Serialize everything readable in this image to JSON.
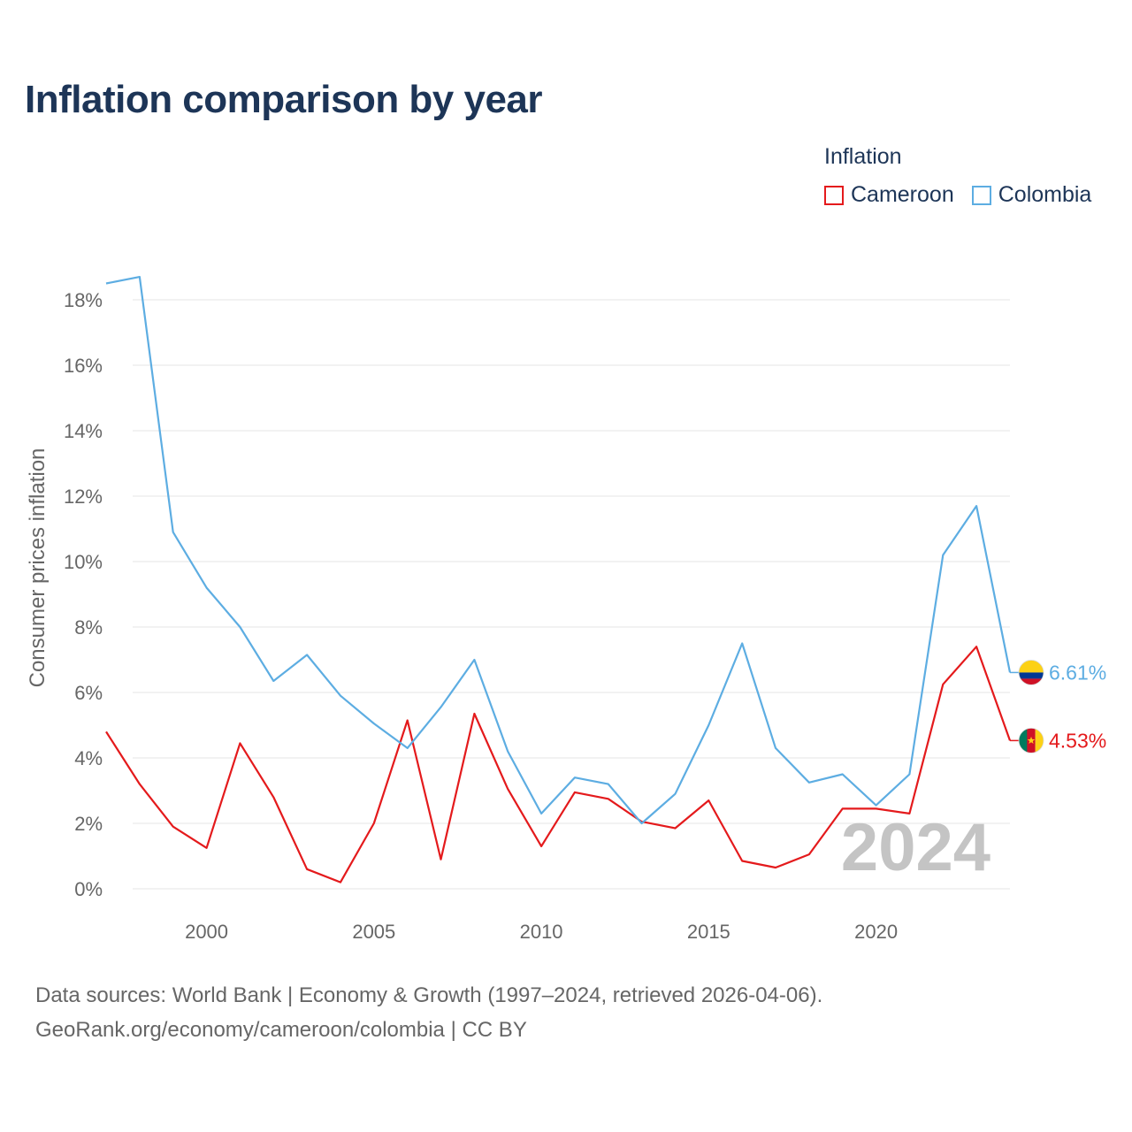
{
  "chart_data": {
    "type": "line",
    "title": "Inflation comparison by year",
    "legend_title": "Inflation",
    "ylabel": "Consumer prices inflation",
    "xlabel": "",
    "ylim": [
      -0.5,
      19
    ],
    "xlim": [
      1997,
      2024
    ],
    "y_ticks": [
      0,
      2,
      4,
      6,
      8,
      10,
      12,
      14,
      16,
      18
    ],
    "y_tick_labels": [
      "0%",
      "2%",
      "4%",
      "6%",
      "8%",
      "10%",
      "12%",
      "14%",
      "16%",
      "18%"
    ],
    "x_ticks": [
      2000,
      2005,
      2010,
      2015,
      2020
    ],
    "x_tick_labels": [
      "2000",
      "2005",
      "2010",
      "2015",
      "2020"
    ],
    "year_watermark": "2024",
    "x": [
      1997,
      1998,
      1999,
      2000,
      2001,
      2002,
      2003,
      2004,
      2005,
      2006,
      2007,
      2008,
      2009,
      2010,
      2011,
      2012,
      2013,
      2014,
      2015,
      2016,
      2017,
      2018,
      2019,
      2020,
      2021,
      2022,
      2023,
      2024
    ],
    "series": [
      {
        "name": "Cameroon",
        "color": "#e41a1c",
        "end_label": "4.53%",
        "values": [
          4.8,
          3.2,
          1.9,
          1.25,
          4.45,
          2.8,
          0.6,
          0.2,
          2.0,
          5.15,
          0.9,
          5.35,
          3.05,
          1.3,
          2.95,
          2.75,
          2.05,
          1.85,
          2.7,
          0.85,
          0.65,
          1.05,
          2.45,
          2.45,
          2.3,
          6.25,
          7.4,
          4.53
        ]
      },
      {
        "name": "Colombia",
        "color": "#5dade2",
        "end_label": "6.61%",
        "values": [
          18.5,
          18.7,
          10.9,
          9.2,
          8.0,
          6.35,
          7.15,
          5.9,
          5.05,
          4.3,
          5.55,
          7.0,
          4.2,
          2.3,
          3.4,
          3.2,
          2.0,
          2.9,
          5.0,
          7.5,
          4.3,
          3.25,
          3.5,
          2.55,
          3.5,
          10.2,
          11.7,
          6.61
        ]
      }
    ]
  },
  "sources": {
    "line1": "Data sources: World Bank | Economy & Growth (1997–2024, retrieved 2026-04-06).",
    "line2": "GeoRank.org/economy/cameroon/colombia | CC BY"
  }
}
